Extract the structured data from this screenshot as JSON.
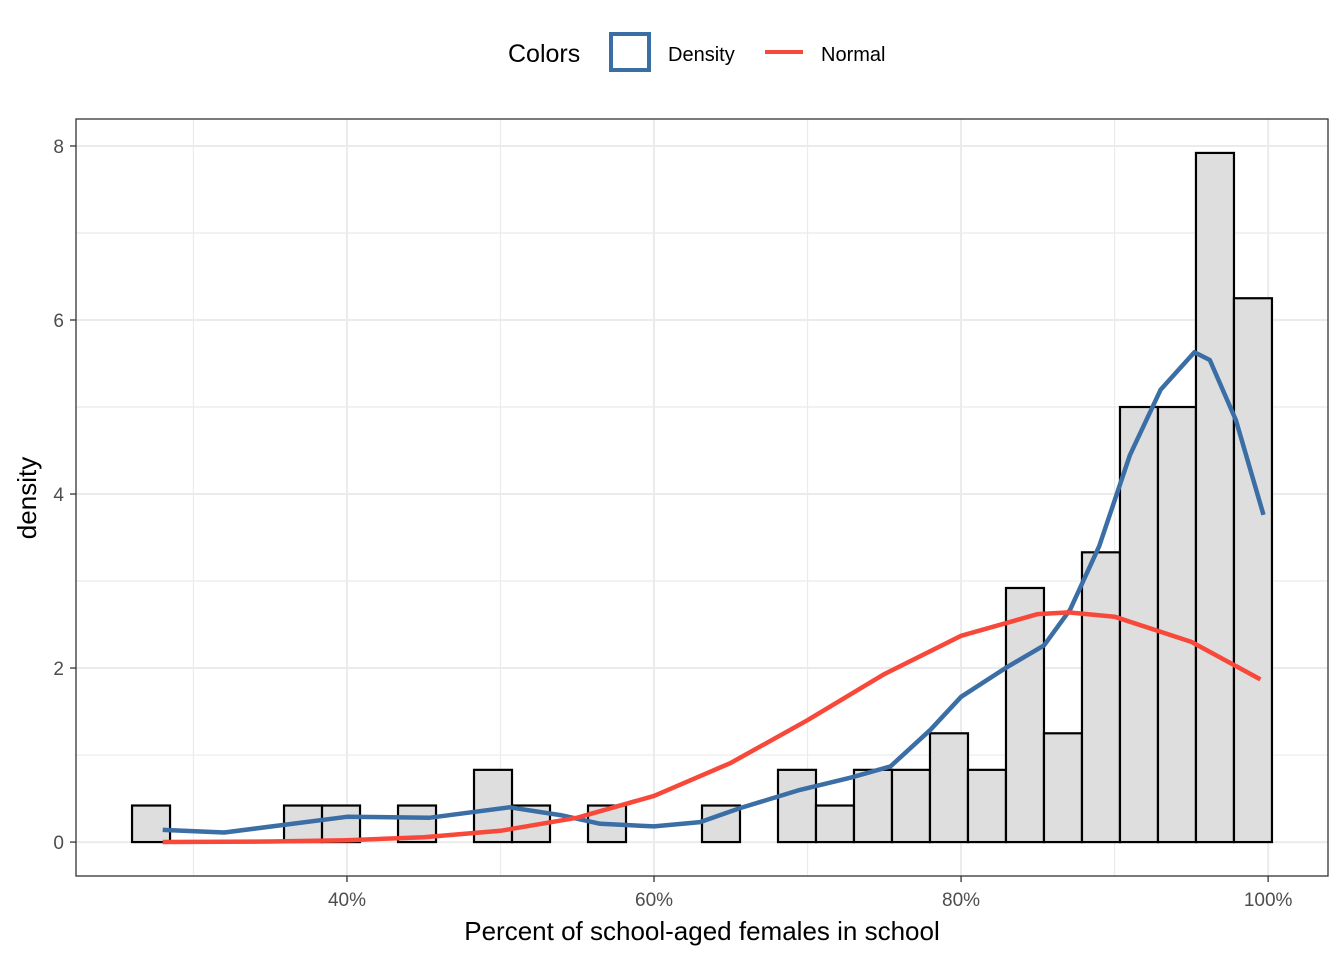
{
  "chart_data": {
    "type": "bar",
    "subtype": "histogram with density overlays",
    "xlabel": "Percent of school-aged females in school",
    "ylabel": "density",
    "xlim": [
      22.35,
      103.9
    ],
    "ylim": [
      -0.39,
      8.31
    ],
    "x_ticks": [
      {
        "value": 40,
        "label": "40%"
      },
      {
        "value": 60,
        "label": "60%"
      },
      {
        "value": 80,
        "label": "80%"
      },
      {
        "value": 100,
        "label": "100%"
      }
    ],
    "y_ticks": [
      {
        "value": 0,
        "label": "0"
      },
      {
        "value": 2,
        "label": "2"
      },
      {
        "value": 4,
        "label": "4"
      },
      {
        "value": 6,
        "label": "6"
      },
      {
        "value": 8,
        "label": "8"
      }
    ],
    "grid": true,
    "legend": {
      "position": "top",
      "title": "Colors",
      "entries": [
        {
          "name": "Density",
          "color": "#3a6ea5",
          "shape": "square-outline"
        },
        {
          "name": "Normal",
          "color": "#f8483a",
          "shape": "line"
        }
      ]
    },
    "histogram": {
      "bin_start": 26.0,
      "bin_width": 2.475,
      "fill": "#dedede",
      "outline": "#000000",
      "values": [
        0.42,
        0,
        0,
        0,
        0.42,
        0.42,
        0,
        0.42,
        0,
        0.83,
        0.42,
        0,
        0.42,
        0,
        0,
        0.42,
        0,
        0.83,
        0.42,
        0.83,
        0.83,
        1.25,
        0.83,
        2.92,
        1.25,
        3.33,
        5.0,
        5.0,
        7.92,
        6.25
      ]
    },
    "series": [
      {
        "name": "Density",
        "type": "line",
        "color": "#3a6ea5",
        "x": [
          28,
          32,
          40,
          45.4,
          50.6,
          53.9,
          56.5,
          60,
          63,
          65.6,
          69.5,
          72.8,
          75.4,
          78,
          80,
          82.9,
          85.4,
          87.1,
          89,
          91,
          93,
          95.2,
          96.2,
          97.9,
          99.7
        ],
        "y": [
          0.14,
          0.11,
          0.29,
          0.28,
          0.4,
          0.31,
          0.21,
          0.18,
          0.23,
          0.39,
          0.6,
          0.74,
          0.87,
          1.29,
          1.67,
          2.0,
          2.26,
          2.67,
          3.4,
          4.45,
          5.2,
          5.63,
          5.54,
          4.85,
          3.76
        ]
      },
      {
        "name": "Normal",
        "type": "line",
        "color": "#f8483a",
        "x": [
          28,
          35,
          40,
          45,
          50,
          55,
          60,
          65,
          70,
          75,
          80,
          85,
          87,
          90,
          95,
          99.5
        ],
        "y": [
          0.001,
          0.007,
          0.021,
          0.055,
          0.13,
          0.28,
          0.53,
          0.91,
          1.4,
          1.93,
          2.37,
          2.62,
          2.64,
          2.59,
          2.3,
          1.87
        ]
      }
    ]
  }
}
